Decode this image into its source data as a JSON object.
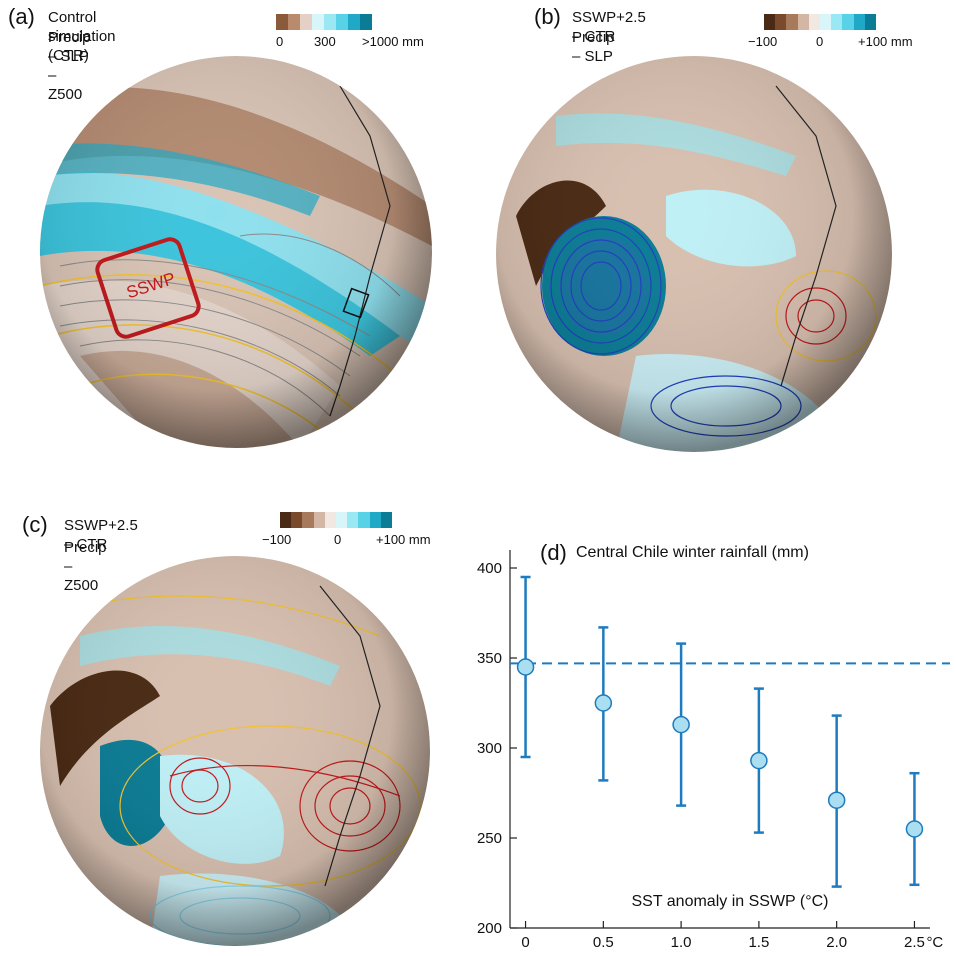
{
  "panel_a": {
    "letter": "(a)",
    "title_line1": "Control simulation (CTR)",
    "title_line2": "Precip – SLP – Z500",
    "colorbar_ticks": [
      "0",
      "300",
      ">1000 mm"
    ],
    "box_label": "SSWP"
  },
  "panel_b": {
    "letter": "(b)",
    "title_line1": "SSWP+2.5  – CTR",
    "title_line2": "Precip – SLP",
    "colorbar_ticks": [
      "−100",
      "0",
      "+100 mm"
    ]
  },
  "panel_c": {
    "letter": "(c)",
    "title_line1": "SSWP+2.5  – CTR",
    "title_line2": "Precip – Z500",
    "colorbar_ticks": [
      "−100",
      "0",
      "+100 mm"
    ]
  },
  "panel_d": {
    "letter": "(d)"
  },
  "colors": {
    "dry_dark": "#4a2a14",
    "dry_mid": "#b98a6c",
    "neutral": "#efe4dc",
    "wet_light": "#bff0f6",
    "wet_mid": "#3cc4dc",
    "wet_dark": "#0b7c95",
    "marker_fill": "#a9dff0",
    "marker_stroke": "#1f7bbf",
    "box_red": "#c0181b"
  },
  "chart_data": {
    "type": "scatter",
    "title": "Central Chile winter rainfall (mm)",
    "xlabel": "SST anomaly in SSWP (°C)",
    "x": [
      0,
      0.5,
      1.0,
      1.5,
      2.0,
      2.5
    ],
    "x_tick_labels": [
      "0",
      "0.5",
      "1.0",
      "1.5",
      "2.0",
      "2.5"
    ],
    "x_unit_label": "°C",
    "series": [
      {
        "values": [
          345,
          325,
          313,
          293,
          271,
          255
        ],
        "error_low": [
          295,
          282,
          268,
          253,
          223,
          224
        ],
        "error_high": [
          395,
          367,
          358,
          333,
          318,
          286
        ]
      }
    ],
    "reference_line": 347,
    "y_ticks": [
      200,
      250,
      300,
      350,
      400
    ],
    "ylim": [
      200,
      410
    ],
    "xlim": [
      -0.1,
      2.6
    ],
    "grid": false
  }
}
